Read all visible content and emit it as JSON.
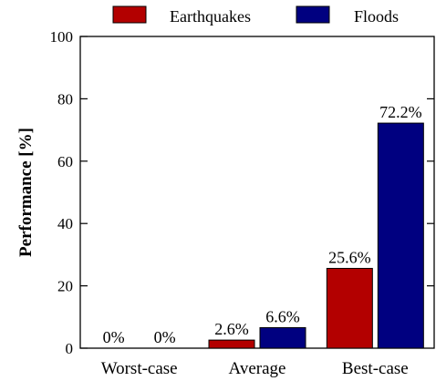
{
  "chart_data": {
    "type": "bar",
    "title": "",
    "xlabel": "",
    "ylabel": "Performance [%]",
    "ylim": [
      0,
      100
    ],
    "yticks": [
      0,
      20,
      40,
      60,
      80,
      100
    ],
    "grid": false,
    "legend": "top-center",
    "categories": [
      "Worst-case",
      "Average",
      "Best-case"
    ],
    "series": [
      {
        "name": "Earthquakes",
        "color": "#b30000",
        "values": [
          0,
          2.6,
          25.6
        ],
        "labels": [
          "0%",
          "2.6%",
          "25.6%"
        ]
      },
      {
        "name": "Floods",
        "color": "#000080",
        "values": [
          0,
          6.6,
          72.2
        ],
        "labels": [
          "0%",
          "6.6%",
          "72.2%"
        ]
      }
    ]
  }
}
